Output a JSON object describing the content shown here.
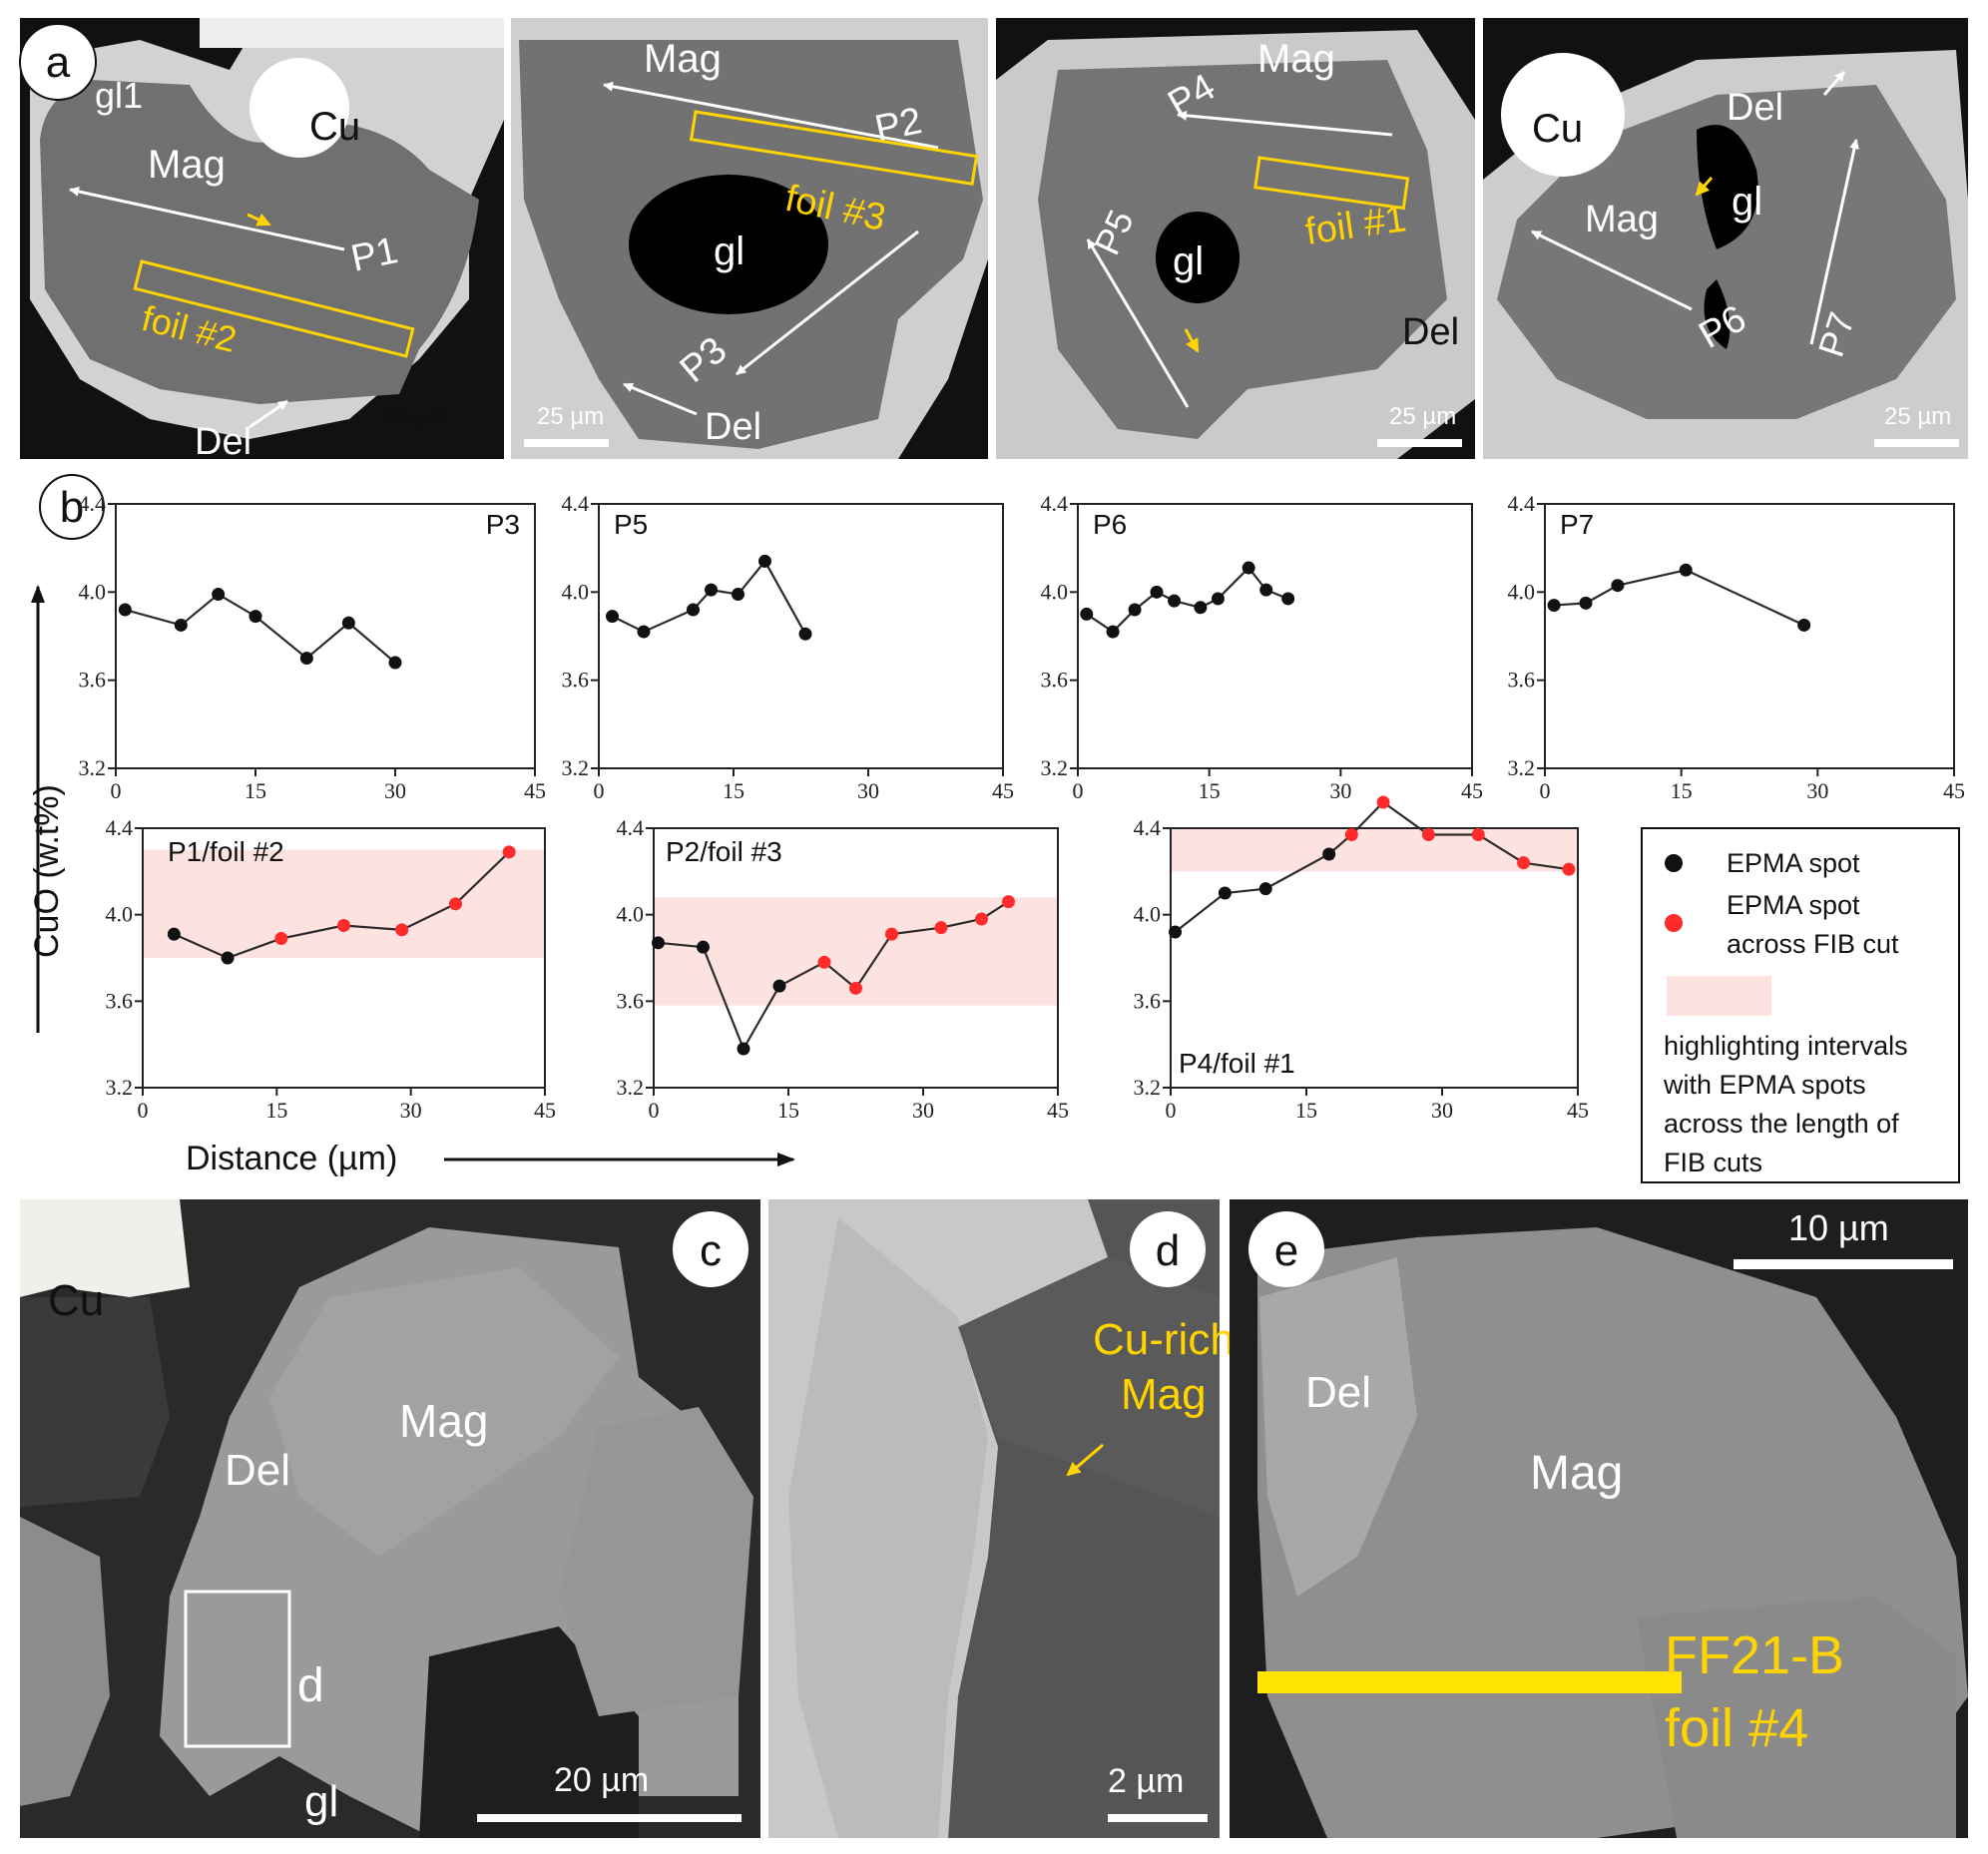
{
  "panel_a": {
    "letter": "a",
    "scale_label": "25 µm",
    "tiles": [
      {
        "labels": [
          "gl1",
          "Cu",
          "Mag",
          "P1",
          "Del"
        ],
        "foil": "foil #2"
      },
      {
        "labels": [
          "Mag",
          "P2",
          "gl",
          "P3",
          "Del"
        ],
        "foil": "foil #3"
      },
      {
        "labels": [
          "Mag",
          "P4",
          "P5",
          "gl",
          "Del"
        ],
        "foil": "foil #1"
      },
      {
        "labels": [
          "Cu",
          "Del",
          "Mag",
          "gl",
          "P6",
          "P7"
        ],
        "foil": ""
      }
    ]
  },
  "panel_b": {
    "letter": "b",
    "ylabel": "CuO (w.t%)",
    "xlabel": "Distance (µm)",
    "legend": {
      "black": "EPMA spot",
      "red": [
        "EPMA spot",
        "across FIB cut"
      ],
      "band": [
        "highlighting intervals",
        "with EPMA spots",
        "across the length of",
        "FIB cuts"
      ]
    },
    "colors": {
      "black_spot": "#111111",
      "red_spot": "#ff2a2a",
      "band": "#fde3e0",
      "line": "#2b2b2b"
    }
  },
  "chart_data": [
    {
      "type": "line",
      "title": "P3",
      "xlim": [
        0,
        45
      ],
      "ylim": [
        3.2,
        4.4
      ],
      "xticks": [
        "0",
        "15",
        "30",
        "45"
      ],
      "yticks": [
        "3.2",
        "3.6",
        "4.0",
        "4.4"
      ],
      "x": [
        1,
        7,
        11,
        15,
        20.5,
        25,
        30
      ],
      "y": [
        3.92,
        3.85,
        3.99,
        3.89,
        3.7,
        3.86,
        3.68
      ],
      "red_from": null,
      "band": null
    },
    {
      "type": "line",
      "title": "P5",
      "xlim": [
        0,
        45
      ],
      "ylim": [
        3.2,
        4.4
      ],
      "xticks": [
        "0",
        "15",
        "30",
        "45"
      ],
      "yticks": [
        "3.2",
        "3.6",
        "4.0",
        "4.4"
      ],
      "x": [
        1.5,
        5,
        10.5,
        12.5,
        15.5,
        18.5,
        23
      ],
      "y": [
        3.89,
        3.82,
        3.92,
        4.01,
        3.99,
        4.14,
        3.81
      ],
      "red_from": null,
      "band": null
    },
    {
      "type": "line",
      "title": "P6",
      "xlim": [
        0,
        45
      ],
      "ylim": [
        3.2,
        4.4
      ],
      "xticks": [
        "0",
        "15",
        "30",
        "45"
      ],
      "yticks": [
        "3.2",
        "3.6",
        "4.0",
        "4.4"
      ],
      "x": [
        1,
        4,
        6.5,
        9,
        11,
        14,
        16,
        19.5,
        21.5,
        24
      ],
      "y": [
        3.9,
        3.82,
        3.92,
        4.0,
        3.96,
        3.93,
        3.97,
        4.11,
        4.01,
        3.97
      ],
      "red_from": null,
      "band": null
    },
    {
      "type": "line",
      "title": "P7",
      "xlim": [
        0,
        45
      ],
      "ylim": [
        3.2,
        4.4
      ],
      "xticks": [
        "0",
        "15",
        "30",
        "45"
      ],
      "yticks": [
        "3.2",
        "3.6",
        "4.0",
        "4.4"
      ],
      "x": [
        1,
        4.5,
        8,
        15.5,
        28.5
      ],
      "y": [
        3.94,
        3.95,
        4.03,
        4.1,
        3.85
      ],
      "red_from": null,
      "band": null
    },
    {
      "type": "line",
      "title": "P1/foil #2",
      "xlim": [
        0,
        45
      ],
      "ylim": [
        3.2,
        4.4
      ],
      "xticks": [
        "0",
        "15",
        "30",
        "45"
      ],
      "yticks": [
        "3.2",
        "3.6",
        "4.0",
        "4.4"
      ],
      "x": [
        3.5,
        9.5,
        15.5,
        22.5,
        29,
        35,
        41
      ],
      "y": [
        3.91,
        3.8,
        3.89,
        3.95,
        3.93,
        4.05,
        4.29
      ],
      "red_from": 2,
      "band": [
        3.8,
        4.3
      ]
    },
    {
      "type": "line",
      "title": "P2/foil #3",
      "xlim": [
        0,
        45
      ],
      "ylim": [
        3.2,
        4.4
      ],
      "xticks": [
        "0",
        "15",
        "30",
        "45"
      ],
      "yticks": [
        "3.2",
        "3.6",
        "4.0",
        "4.4"
      ],
      "x": [
        0.5,
        5.5,
        10,
        14,
        19,
        22.5,
        26.5,
        32,
        36.5,
        39.5
      ],
      "y": [
        3.87,
        3.85,
        3.38,
        3.67,
        3.78,
        3.66,
        3.91,
        3.94,
        3.98,
        4.06
      ],
      "red_from": 4,
      "band": [
        3.58,
        4.08
      ]
    },
    {
      "type": "line",
      "title": "P4/foil #1",
      "xlim": [
        0,
        45
      ],
      "ylim": [
        3.2,
        4.4
      ],
      "xticks": [
        "0",
        "15",
        "30",
        "45"
      ],
      "yticks": [
        "3.2",
        "3.6",
        "4.0",
        "4.4"
      ],
      "x": [
        0.5,
        6,
        10.5,
        17.5,
        20,
        23.5,
        28.5,
        34,
        39,
        44
      ],
      "y": [
        3.92,
        4.1,
        4.12,
        4.28,
        4.37,
        4.52,
        4.37,
        4.37,
        4.24,
        4.21
      ],
      "red_from": 4,
      "band": [
        4.2,
        4.58
      ]
    }
  ],
  "panel_c": {
    "letter": "c",
    "labels": [
      "Cu",
      "Mag",
      "Del",
      "d",
      "gl"
    ],
    "scale_label": "20 µm"
  },
  "panel_d": {
    "letter": "d",
    "label_line1": "Cu-rich",
    "label_line2": "Mag",
    "scale_label": "2 µm"
  },
  "panel_e": {
    "letter": "e",
    "labels": [
      "Del",
      "Mag"
    ],
    "foil_line1": "FF21-B",
    "foil_line2": "foil #4",
    "scale_label": "10 µm"
  }
}
